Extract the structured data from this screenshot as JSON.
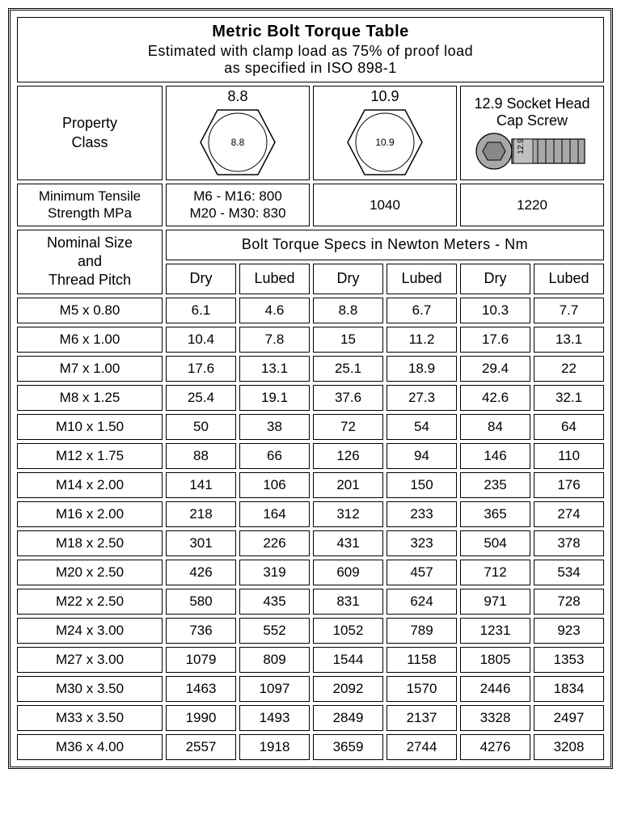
{
  "title": {
    "main": "Metric Bolt Torque Table",
    "sub1": "Estimated with clamp load as 75% of proof load",
    "sub2": "as specified in ISO 898-1"
  },
  "property_class": {
    "label": "Property\nClass",
    "classes": [
      "8.8",
      "10.9",
      "12.9 Socket Head\nCap Screw"
    ]
  },
  "tensile": {
    "label": "Minimum Tensile\nStrength MPa",
    "values": [
      "M6 - M16: 800\nM20 - M30: 830",
      "1040",
      "1220"
    ]
  },
  "size_header": "Nominal Size\nand\nThread Pitch",
  "torque_header": "Bolt Torque Specs in Newton Meters - Nm",
  "sub_headers": [
    "Dry",
    "Lubed",
    "Dry",
    "Lubed",
    "Dry",
    "Lubed"
  ],
  "rows": [
    {
      "size": "M5 x 0.80",
      "v": [
        "6.1",
        "4.6",
        "8.8",
        "6.7",
        "10.3",
        "7.7"
      ]
    },
    {
      "size": "M6 x 1.00",
      "v": [
        "10.4",
        "7.8",
        "15",
        "11.2",
        "17.6",
        "13.1"
      ]
    },
    {
      "size": "M7 x 1.00",
      "v": [
        "17.6",
        "13.1",
        "25.1",
        "18.9",
        "29.4",
        "22"
      ]
    },
    {
      "size": "M8 x 1.25",
      "v": [
        "25.4",
        "19.1",
        "37.6",
        "27.3",
        "42.6",
        "32.1"
      ]
    },
    {
      "size": "M10 x 1.50",
      "v": [
        "50",
        "38",
        "72",
        "54",
        "84",
        "64"
      ]
    },
    {
      "size": "M12 x 1.75",
      "v": [
        "88",
        "66",
        "126",
        "94",
        "146",
        "110"
      ]
    },
    {
      "size": "M14 x 2.00",
      "v": [
        "141",
        "106",
        "201",
        "150",
        "235",
        "176"
      ]
    },
    {
      "size": "M16 x 2.00",
      "v": [
        "218",
        "164",
        "312",
        "233",
        "365",
        "274"
      ]
    },
    {
      "size": "M18 x 2.50",
      "v": [
        "301",
        "226",
        "431",
        "323",
        "504",
        "378"
      ]
    },
    {
      "size": "M20 x 2.50",
      "v": [
        "426",
        "319",
        "609",
        "457",
        "712",
        "534"
      ]
    },
    {
      "size": "M22 x 2.50",
      "v": [
        "580",
        "435",
        "831",
        "624",
        "971",
        "728"
      ]
    },
    {
      "size": "M24 x 3.00",
      "v": [
        "736",
        "552",
        "1052",
        "789",
        "1231",
        "923"
      ]
    },
    {
      "size": "M27 x 3.00",
      "v": [
        "1079",
        "809",
        "1544",
        "1158",
        "1805",
        "1353"
      ]
    },
    {
      "size": "M30 x 3.50",
      "v": [
        "1463",
        "1097",
        "2092",
        "1570",
        "2446",
        "1834"
      ]
    },
    {
      "size": "M33 x 3.50",
      "v": [
        "1990",
        "1493",
        "2849",
        "2137",
        "3328",
        "2497"
      ]
    },
    {
      "size": "M36 x 4.00",
      "v": [
        "2557",
        "1918",
        "3659",
        "2744",
        "4276",
        "3208"
      ]
    }
  ],
  "style": {
    "background_color": "#ffffff",
    "border_color": "#000000",
    "text_color": "#000000",
    "hex_fill": "#ffffff",
    "hex_stroke": "#000000",
    "socket_fill": "#a8a8a8",
    "socket_stroke": "#000000",
    "title_fontsize": 20,
    "body_fontsize": 17
  }
}
